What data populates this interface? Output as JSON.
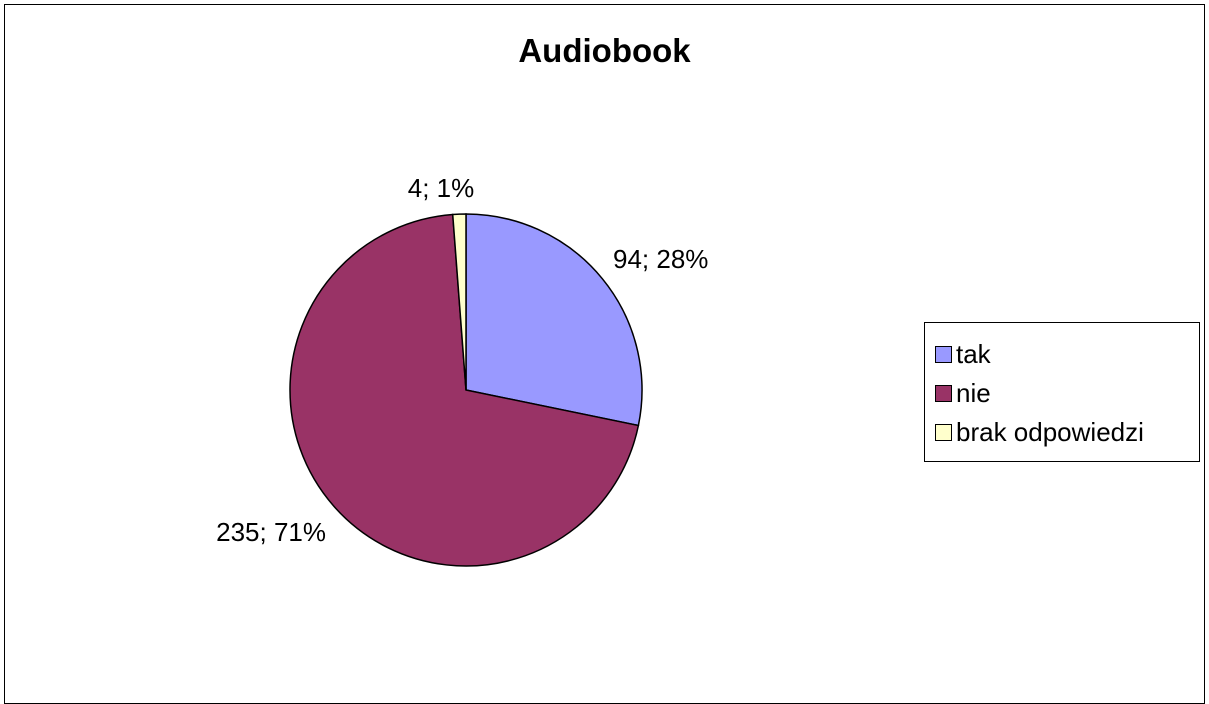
{
  "chart_data": {
    "type": "pie",
    "title": "Audiobook",
    "slices": [
      {
        "name": "tak",
        "value": 94,
        "percent": "28%",
        "label": "94; 28%",
        "color": "#9999FF"
      },
      {
        "name": "nie",
        "value": 235,
        "percent": "71%",
        "label": "235; 71%",
        "color": "#993366"
      },
      {
        "name": "brak odpowiedzi",
        "value": 4,
        "percent": "1%",
        "label": "4; 1%",
        "color": "#FFFFCC"
      }
    ],
    "start_angle": "12 o'clock",
    "direction": "clockwise",
    "legend": {
      "position": "right"
    }
  }
}
